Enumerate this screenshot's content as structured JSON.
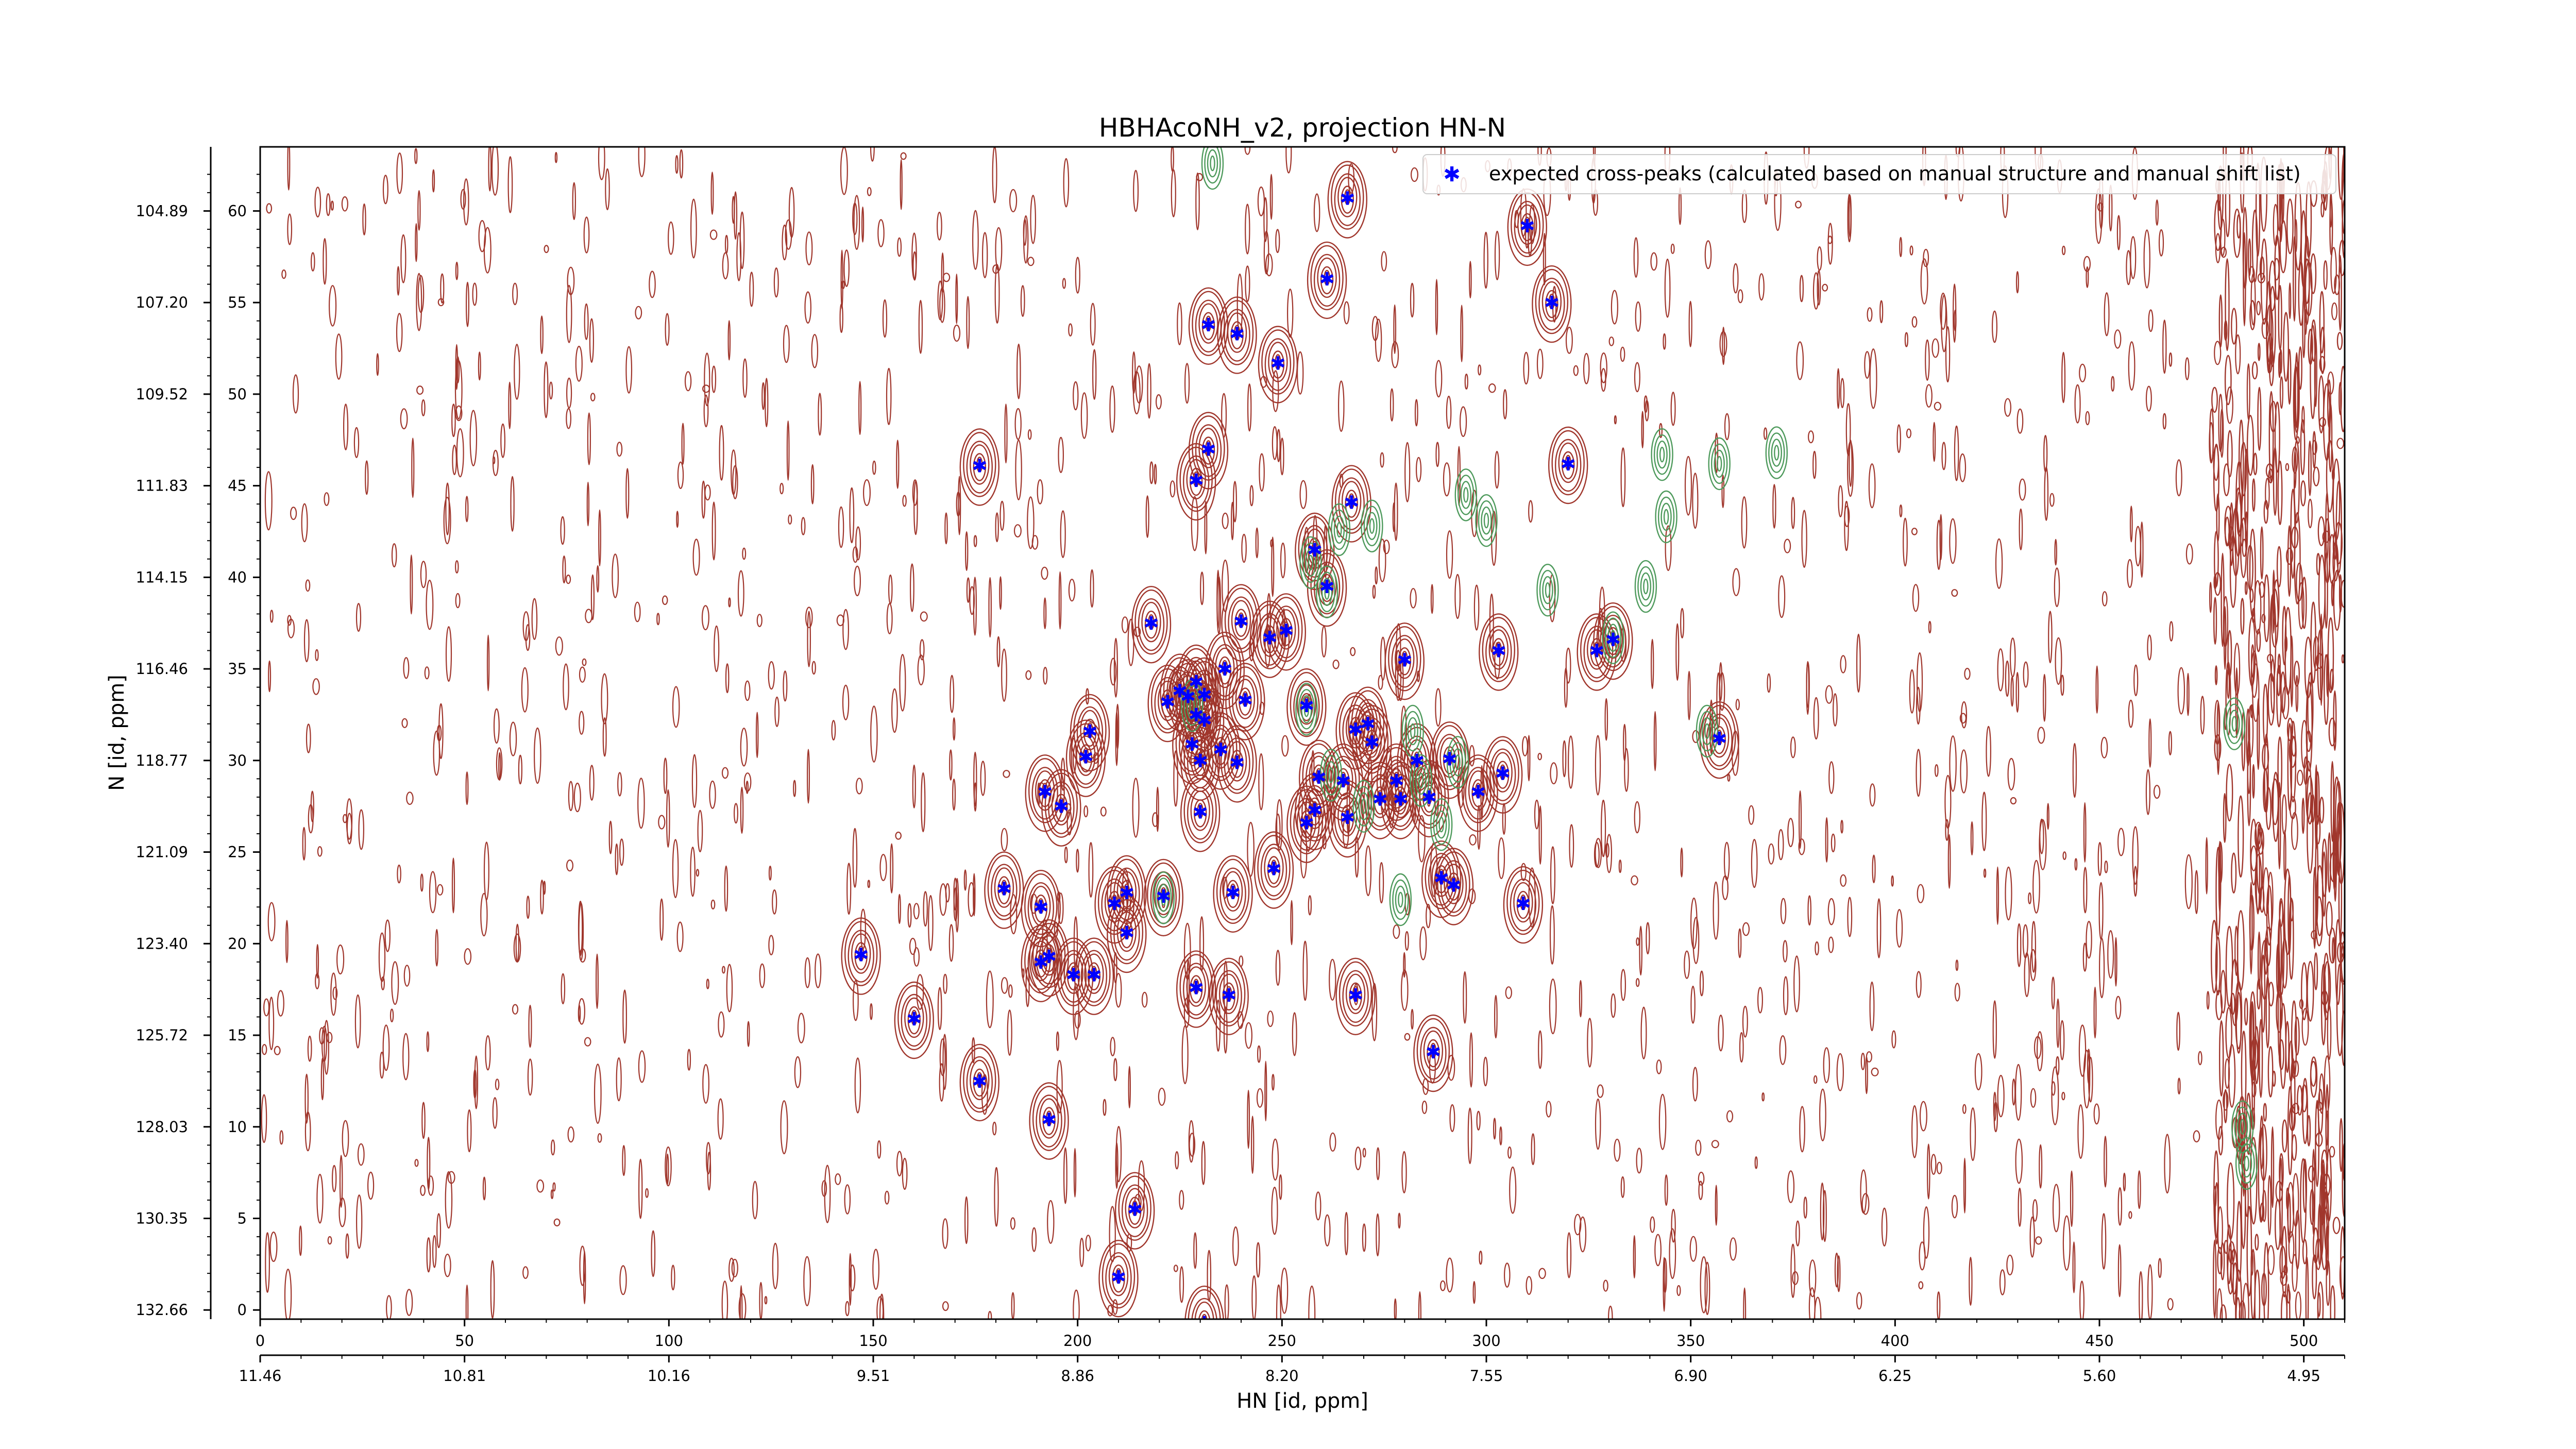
{
  "chart_data": {
    "type": "scatter",
    "title": "HBHAcoNH_v2, projection HN-N",
    "xlabel": "HN [id, ppm]",
    "ylabel": "N [id, ppm]",
    "xlim": [
      0,
      510
    ],
    "ylim": [
      -0.5,
      63.5
    ],
    "grid": false,
    "legend_position": "top-right",
    "x_ticks_index": [
      0,
      50,
      100,
      150,
      200,
      250,
      300,
      350,
      400,
      450,
      500
    ],
    "x_ticks_ppm": [
      "11.46",
      "10.81",
      "10.16",
      "9.51",
      "8.86",
      "8.20",
      "7.55",
      "6.90",
      "6.25",
      "5.60",
      "4.95"
    ],
    "y_ticks_index": [
      0,
      5,
      10,
      15,
      20,
      25,
      30,
      35,
      40,
      45,
      50,
      55,
      60
    ],
    "y_ticks_ppm": [
      "132.66",
      "130.35",
      "128.03",
      "125.72",
      "123.40",
      "121.09",
      "118.77",
      "116.46",
      "114.15",
      "111.83",
      "109.52",
      "107.20",
      "104.89"
    ],
    "colors": {
      "positive_contours": "#a0362c",
      "negative_contours": "#4e9a5c",
      "marker": "#0000ff"
    },
    "series": [
      {
        "name": "expected cross-peaks (calculated based on manual structure and manual shift list)",
        "marker": "star",
        "points": [
          [
            266,
            60.7
          ],
          [
            310,
            59.2
          ],
          [
            261,
            56.3
          ],
          [
            316,
            55.0
          ],
          [
            232,
            53.8
          ],
          [
            239,
            53.3
          ],
          [
            249,
            51.7
          ],
          [
            232,
            47.0
          ],
          [
            176,
            46.1
          ],
          [
            229,
            45.3
          ],
          [
            320,
            46.2
          ],
          [
            267,
            44.1
          ],
          [
            258,
            41.5
          ],
          [
            261,
            39.5
          ],
          [
            218,
            37.5
          ],
          [
            240,
            37.6
          ],
          [
            247,
            36.7
          ],
          [
            251,
            37.1
          ],
          [
            280,
            35.5
          ],
          [
            303,
            36.0
          ],
          [
            327,
            36.0
          ],
          [
            331,
            36.6
          ],
          [
            229,
            34.3
          ],
          [
            236,
            35.0
          ],
          [
            231,
            33.6
          ],
          [
            227,
            33.5
          ],
          [
            222,
            33.2
          ],
          [
            229,
            32.5
          ],
          [
            231,
            32.2
          ],
          [
            225,
            33.8
          ],
          [
            241,
            33.3
          ],
          [
            256,
            33.0
          ],
          [
            268,
            31.7
          ],
          [
            271,
            32.0
          ],
          [
            272,
            31.0
          ],
          [
            228,
            30.9
          ],
          [
            203,
            31.6
          ],
          [
            202,
            30.2
          ],
          [
            230,
            30.0
          ],
          [
            235,
            30.6
          ],
          [
            239,
            29.9
          ],
          [
            259,
            29.1
          ],
          [
            265,
            28.9
          ],
          [
            278,
            28.9
          ],
          [
            283,
            30.0
          ],
          [
            291,
            30.1
          ],
          [
            304,
            29.3
          ],
          [
            357,
            31.2
          ],
          [
            192,
            28.3
          ],
          [
            196,
            27.5
          ],
          [
            230,
            27.2
          ],
          [
            258,
            27.3
          ],
          [
            266,
            26.9
          ],
          [
            274,
            27.9
          ],
          [
            279,
            27.9
          ],
          [
            286,
            28.0
          ],
          [
            298,
            28.3
          ],
          [
            256,
            26.6
          ],
          [
            248,
            24.1
          ],
          [
            289,
            23.6
          ],
          [
            292,
            23.2
          ],
          [
            182,
            23.0
          ],
          [
            191,
            22.0
          ],
          [
            209,
            22.2
          ],
          [
            212,
            22.8
          ],
          [
            221,
            22.6
          ],
          [
            238,
            22.8
          ],
          [
            309,
            22.2
          ],
          [
            147,
            19.4
          ],
          [
            193,
            19.3
          ],
          [
            191,
            19.0
          ],
          [
            199,
            18.3
          ],
          [
            204,
            18.3
          ],
          [
            212,
            20.6
          ],
          [
            229,
            17.6
          ],
          [
            237,
            17.2
          ],
          [
            268,
            17.2
          ],
          [
            160,
            15.9
          ],
          [
            287,
            14.1
          ],
          [
            176,
            12.5
          ],
          [
            193,
            10.4
          ],
          [
            214,
            5.5
          ],
          [
            210,
            1.8
          ],
          [
            231,
            -0.7
          ]
        ]
      }
    ]
  }
}
